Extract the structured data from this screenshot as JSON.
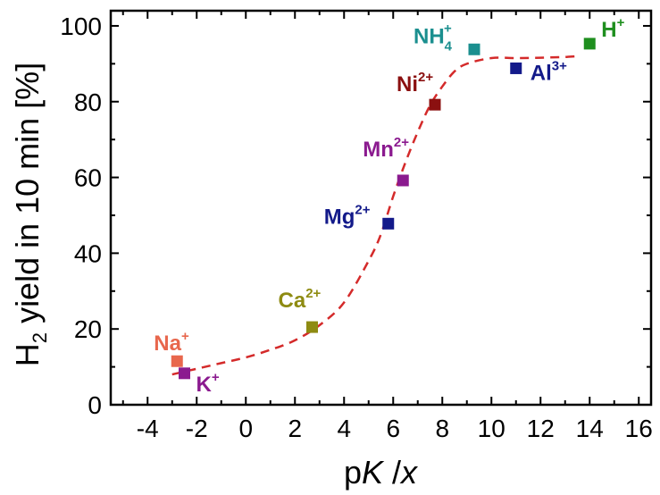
{
  "chart_data": {
    "type": "scatter",
    "xlabel": {
      "p": "p",
      "K": "K",
      "slash": " /",
      "x": "x"
    },
    "ylabel": {
      "h": "H",
      "sub": "2",
      "rest": " yield in 10 min [%]"
    },
    "xlim": [
      -5.5,
      16.5
    ],
    "ylim": [
      0,
      104
    ],
    "xticks": [
      "-4",
      "-2",
      "0",
      "2",
      "4",
      "6",
      "8",
      "10",
      "12",
      "14",
      "16"
    ],
    "yticks": [
      "0",
      "20",
      "40",
      "60",
      "80",
      "100"
    ],
    "legend": false,
    "grid": false,
    "points": [
      {
        "ion": "Na",
        "charge": "+",
        "x": -2.8,
        "y": 11.5,
        "color": "#e8674d"
      },
      {
        "ion": "K",
        "charge": "+",
        "x": -2.5,
        "y": 8.3,
        "color": "#8b1a8f"
      },
      {
        "ion": "Ca",
        "charge": "2+",
        "x": 2.7,
        "y": 20.5,
        "color": "#8e8b12"
      },
      {
        "ion": "Mg",
        "charge": "2+",
        "x": 5.8,
        "y": 47.8,
        "color": "#131a8a"
      },
      {
        "ion": "Mn",
        "charge": "2+",
        "x": 6.4,
        "y": 59.2,
        "color": "#8b1a8f"
      },
      {
        "ion": "Ni",
        "charge": "2+",
        "x": 7.7,
        "y": 79.2,
        "color": "#8b1010"
      },
      {
        "ion": "NH",
        "sub": "4",
        "charge": "+",
        "x": 9.3,
        "y": 93.8,
        "color": "#1b8f8f"
      },
      {
        "ion": "Al",
        "charge": "3+",
        "x": 11.0,
        "y": 88.8,
        "color": "#131a8a"
      },
      {
        "ion": "H",
        "charge": "+",
        "x": 14.0,
        "y": 95.3,
        "color": "#1f8f1f"
      }
    ],
    "fit": {
      "style": "dashed",
      "color": "#d42a2a",
      "x": [
        -3.0,
        -2,
        -1,
        0,
        1,
        2,
        3,
        4,
        5,
        5.5,
        6,
        6.5,
        7,
        7.5,
        8,
        8.5,
        9,
        10,
        11,
        12,
        13,
        13.5
      ],
      "y": [
        8.0,
        9.5,
        11,
        12.5,
        14.5,
        17,
        21,
        27,
        38,
        45,
        55,
        64,
        72,
        79,
        84,
        88,
        90,
        91.5,
        91.5,
        91.6,
        91.8,
        92
      ]
    }
  }
}
